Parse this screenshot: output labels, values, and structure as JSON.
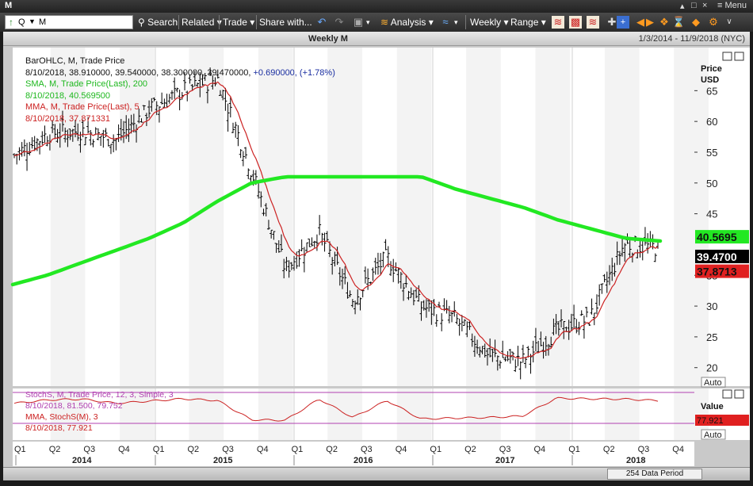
{
  "window": {
    "title": "M",
    "menu_label": "Menu",
    "controls": [
      "▴",
      "□",
      "×"
    ]
  },
  "toolbar": {
    "search_mode": "Q",
    "symbol_value": "M",
    "search_label": "Search",
    "related_label": "Related",
    "trade_label": "Trade",
    "share_label": "Share with...",
    "analysis_label": "Analysis",
    "weekly_label": "Weekly",
    "range_label": "Range"
  },
  "header": {
    "title": "Weekly M",
    "date_range": "1/3/2014 - 11/9/2018 (NYC)"
  },
  "price_legend": {
    "line1": "BarOHLC, M, Trade Price",
    "line2": "8/10/2018, 38.910000, 39.540000, 38.300000, 39.470000, ",
    "line2_change": "+0.690000, (+1.78%)",
    "line3": "SMA, M, Trade Price(Last), 200",
    "line4": "8/10/2018, 40.569500",
    "line5": "MMA, M, Trade Price(Last), 5",
    "line6": "8/10/2018, 37.871331"
  },
  "price_axis": {
    "title": "Price",
    "unit": "USD",
    "ticks": [
      65,
      60,
      55,
      50,
      45,
      35,
      30,
      25,
      20
    ],
    "sma_tag": "40.5695",
    "last_tag": "39.4700",
    "mma_tag": "37.8713",
    "auto_label": "Auto"
  },
  "stoch_legend": {
    "line1": "StochS, M, Trade Price, 12, 3, Simple, 3",
    "line2": "8/10/2018, 81.500, 79.752",
    "line3": "MMA, StochS(M), 3",
    "line4": "8/10/2018, 77.921"
  },
  "stoch_axis": {
    "title": "Value",
    "tag": "77.921",
    "auto_label": "Auto"
  },
  "time_axis": {
    "quarters": [
      "Q1",
      "Q2",
      "Q3",
      "Q4",
      "Q1",
      "Q2",
      "Q3",
      "Q4",
      "Q1",
      "Q2",
      "Q3",
      "Q4",
      "Q1",
      "Q2",
      "Q3",
      "Q4",
      "Q1",
      "Q2",
      "Q3",
      "Q4"
    ],
    "years": [
      "2014",
      "2015",
      "2016",
      "2017",
      "2018"
    ]
  },
  "status": {
    "period": "254 Data Period"
  },
  "colors": {
    "sma": "#22e822",
    "price_bars": "#000000",
    "mma": "#cc2222",
    "stoch": "#cc2222",
    "stoch_band": "#b040b0",
    "last_tag": "#000000",
    "mma_tag": "#e02020",
    "sma_tag": "#22e822",
    "change": "#1a2ea0"
  },
  "chart_data": [
    {
      "type": "line",
      "title": "Weekly M",
      "x": [
        "2014-01",
        "2014-04",
        "2014-07",
        "2014-10",
        "2015-01",
        "2015-04",
        "2015-07",
        "2015-10",
        "2016-01",
        "2016-04",
        "2016-07",
        "2016-10",
        "2017-01",
        "2017-04",
        "2017-07",
        "2017-10",
        "2018-01",
        "2018-04",
        "2018-07",
        "2018-08"
      ],
      "series": [
        {
          "name": "BarOHLC, M, Trade Price",
          "values": [
            54.5,
            58,
            58.5,
            57,
            62,
            65,
            67,
            52,
            36,
            42,
            31,
            38,
            30,
            28,
            22,
            21,
            26,
            28,
            40,
            39.47
          ]
        },
        {
          "name": "SMA, M, Trade Price(Last), 200",
          "values": [
            33.5,
            35,
            37,
            39,
            41,
            43.5,
            47,
            50,
            51,
            51,
            51,
            51,
            51,
            49,
            47.5,
            46,
            44,
            42.5,
            41,
            40.57
          ]
        },
        {
          "name": "MMA, M, Trade Price(Last), 5",
          "values": [
            53,
            57.5,
            58.5,
            57,
            61,
            64.5,
            66,
            54,
            38,
            41,
            33,
            37,
            31,
            28.5,
            22.5,
            21,
            25,
            27.5,
            37,
            37.87
          ]
        }
      ],
      "ylabel": "Price USD",
      "ylim": [
        17,
        72
      ],
      "grid": true
    },
    {
      "type": "line",
      "title": "StochS, M, Trade Price, 12, 3, Simple, 3",
      "series": [
        {
          "name": "StochS(M)",
          "values": [
            70,
            82,
            85,
            70,
            78,
            86,
            80,
            12,
            10,
            85,
            20,
            80,
            15,
            18,
            20,
            25,
            88,
            86,
            85,
            79.75
          ]
        },
        {
          "name": "MMA, StochS(M), 3",
          "values": [
            68,
            80,
            84,
            72,
            77,
            85,
            82,
            14,
            11,
            83,
            22,
            78,
            17,
            18,
            21,
            26,
            86,
            86,
            84,
            77.92
          ]
        }
      ],
      "bands": [
        80,
        20
      ]
    }
  ]
}
